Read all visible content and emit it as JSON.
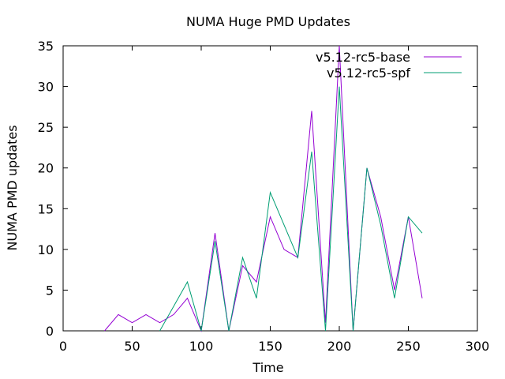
{
  "chart_data": {
    "type": "line",
    "title": "NUMA Huge PMD Updates",
    "xlabel": "Time",
    "ylabel": "NUMA PMD updates",
    "xlim": [
      0,
      300
    ],
    "ylim": [
      0,
      35
    ],
    "xticks": [
      0,
      50,
      100,
      150,
      200,
      250,
      300
    ],
    "yticks": [
      0,
      5,
      10,
      15,
      20,
      25,
      30,
      35
    ],
    "grid": false,
    "legend": "top-right",
    "series": [
      {
        "name": "v5.12-rc5-base",
        "color": "#9400d3",
        "x": [
          30,
          40,
          50,
          60,
          70,
          80,
          90,
          100,
          110,
          120,
          130,
          140,
          150,
          160,
          170,
          180,
          190,
          200,
          210,
          220,
          230,
          240,
          250,
          260
        ],
        "y": [
          0,
          2,
          1,
          2,
          1,
          2,
          4,
          0,
          12,
          0,
          8,
          6,
          14,
          10,
          9,
          27,
          1,
          35,
          0,
          20,
          14,
          5,
          14,
          4
        ]
      },
      {
        "name": "v5.12-rc5-spf",
        "color": "#009e73",
        "x": [
          70,
          80,
          90,
          100,
          110,
          120,
          130,
          140,
          150,
          160,
          170,
          180,
          190,
          200,
          210,
          220,
          230,
          240,
          250,
          260
        ],
        "y": [
          0,
          3,
          6,
          0,
          11,
          0,
          9,
          4,
          17,
          13,
          9,
          22,
          0,
          30,
          0,
          20,
          13,
          4,
          14,
          12
        ]
      }
    ]
  }
}
